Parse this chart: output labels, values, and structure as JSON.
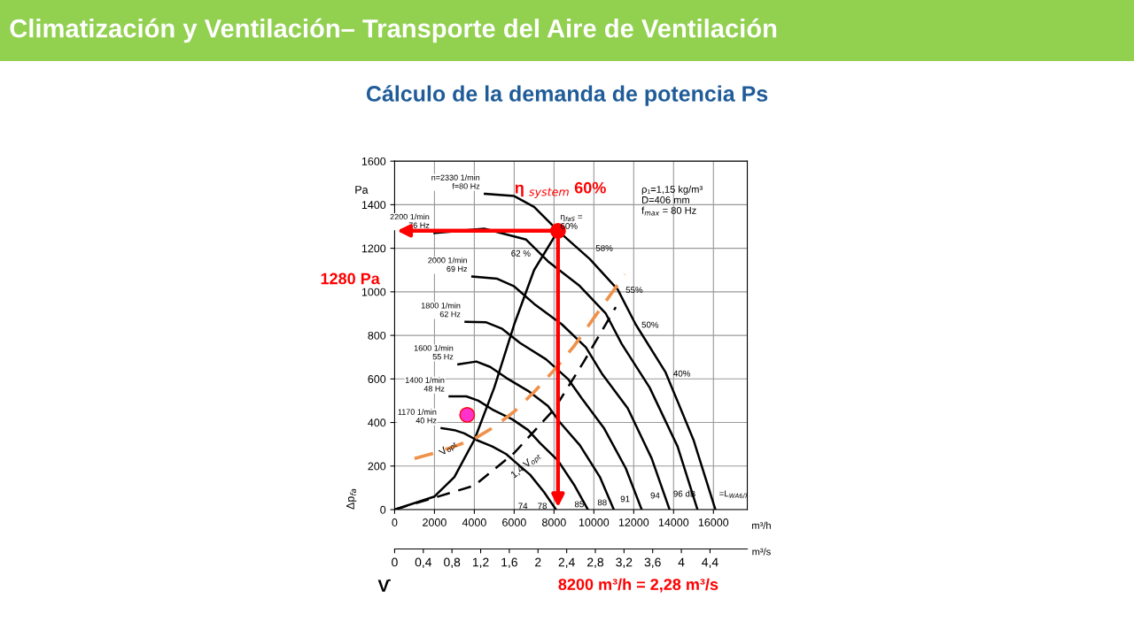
{
  "chart_data": {
    "type": "line",
    "title": "Climatización y Ventilación– Transporte del Aire de Ventilación",
    "subtitle": "Cálculo de la demanda de potencia Ps",
    "xlabel": "m³/h",
    "x2label": "m³/s",
    "ylabel": "Δp$_{fa}$",
    "xlim": [
      0,
      17700
    ],
    "xticks": [
      0,
      2000,
      4000,
      6000,
      8000,
      10000,
      12000,
      14000,
      16000
    ],
    "x2lim": [
      0,
      4.92
    ],
    "x2ticks": [
      0,
      {
        "value": 0.4,
        "label": "0,4"
      },
      {
        "value": 0.8,
        "label": "0,8"
      },
      {
        "value": 1.2,
        "label": "1,2"
      },
      {
        "value": 1.6,
        "label": "1,6"
      },
      2,
      {
        "value": 2.4,
        "label": "2,4"
      },
      {
        "value": 2.8,
        "label": "2,8"
      },
      {
        "value": 3.2,
        "label": "3,2"
      },
      {
        "value": 3.6,
        "label": "3,6"
      },
      4,
      {
        "value": 4.4,
        "label": "4,4"
      }
    ],
    "ylim": [
      0,
      1600
    ],
    "yticks": [
      0,
      200,
      400,
      600,
      800,
      1000,
      1200,
      1400,
      1600
    ],
    "grid": true,
    "legend": false,
    "series": [
      {
        "name": "n=2330 1/min\nf=80 Hz",
        "color": "#000000",
        "x": [
          4530,
          6000,
          7000,
          8200,
          9800,
          11200,
          12100,
          13600,
          15000,
          16100
        ],
        "values": [
          1450,
          1440,
          1390,
          1280,
          1150,
          1010,
          850,
          630,
          320,
          0
        ]
      },
      {
        "name": "2200 1/min\n76 Hz",
        "color": "#000000",
        "x": [
          2000,
          4500,
          6600,
          7700,
          9250,
          10600,
          11400,
          12800,
          14200,
          15200
        ],
        "values": [
          1270,
          1290,
          1240,
          1140,
          1030,
          900,
          760,
          560,
          290,
          0
        ]
      },
      {
        "name": "2000 1/min\n69 Hz",
        "color": "#000000",
        "x": [
          3900,
          5150,
          6000,
          7000,
          8400,
          9600,
          10400,
          11700,
          12900,
          13800
        ],
        "values": [
          1070,
          1060,
          1025,
          945,
          850,
          745,
          625,
          465,
          235,
          0
        ]
      },
      {
        "name": "1800 1/min\n62 Hz",
        "color": "#000000",
        "x": [
          3560,
          4600,
          5400,
          6300,
          7600,
          8700,
          9400,
          10500,
          11600,
          12400
        ],
        "values": [
          862,
          860,
          830,
          765,
          690,
          600,
          510,
          375,
          190,
          0
        ]
      },
      {
        "name": "1600 1/min\n55 Hz",
        "color": "#000000",
        "x": [
          3200,
          4100,
          4800,
          5600,
          6700,
          7700,
          8300,
          9300,
          10300,
          11000
        ],
        "values": [
          667,
          680,
          655,
          605,
          545,
          475,
          400,
          295,
          150,
          0
        ]
      },
      {
        "name": "1400 1/min\n48 Hz",
        "color": "#000000",
        "x": [
          2760,
          3600,
          4200,
          4900,
          5900,
          6700,
          7300,
          8200,
          9000,
          9700
        ],
        "values": [
          520,
          520,
          500,
          460,
          415,
          365,
          305,
          225,
          115,
          0
        ]
      },
      {
        "name": "1170 1/min\n40 Hz",
        "color": "#000000",
        "x": [
          2360,
          3000,
          3500,
          4100,
          4900,
          5600,
          6100,
          6800,
          7500,
          8100
        ],
        "values": [
          374,
          365,
          350,
          320,
          290,
          255,
          215,
          160,
          80,
          0
        ]
      },
      {
        "name": "V̇$_{opt}$",
        "color": "#000000",
        "x": [
          0,
          2000,
          3000,
          4000,
          5000,
          6000,
          7000,
          8200
        ],
        "values": [
          0,
          60,
          150,
          320,
          560,
          850,
          1100,
          1280
        ]
      },
      {
        "name": "1,4 V̇$_{opt}$",
        "color": "#000000",
        "line_style": "dashed",
        "x": [
          0,
          4000,
          6000,
          8000,
          9500,
          11100
        ],
        "values": [
          0,
          110,
          260,
          460,
          680,
          930
        ]
      },
      {
        "color": "#f0914a",
        "line_style": "dashed",
        "x": [
          1000,
          2000,
          3000,
          4000,
          5000,
          6000,
          7000,
          8000,
          9000,
          10000,
          11560
        ],
        "values": [
          235,
          260,
          290,
          325,
          380,
          450,
          540,
          640,
          750,
          880,
          1080
        ]
      },
      {
        "type": "scatter",
        "marker": "circle",
        "colors": [
          "#ff0000",
          "#ff33cc"
        ],
        "x": [
          8200,
          3640
        ],
        "values": [
          1280,
          435
        ]
      }
    ],
    "ref_lines": [
      {
        "axis": "y",
        "value": 1280,
        "label": "1280 Pa",
        "color": "#ff0000"
      },
      {
        "axis": "x",
        "value": 8200,
        "label": "8200 m³/h = 2,28 m³/s",
        "color": "#ff0000"
      }
    ],
    "annotations": [
      "η $_{system}$ 60%",
      "η$_{faS}$ =\n60%",
      "62 %",
      "58%",
      "55%",
      "50%",
      "40%",
      "74",
      "78",
      "85",
      "88",
      "91",
      "94",
      "96 dB",
      "=L$_{WA6/7}$",
      "Pa",
      "V̇",
      "ρ₁=1,15 kg/m³\nD=406 mm\nf$_{max}$ = 80 Hz"
    ]
  }
}
